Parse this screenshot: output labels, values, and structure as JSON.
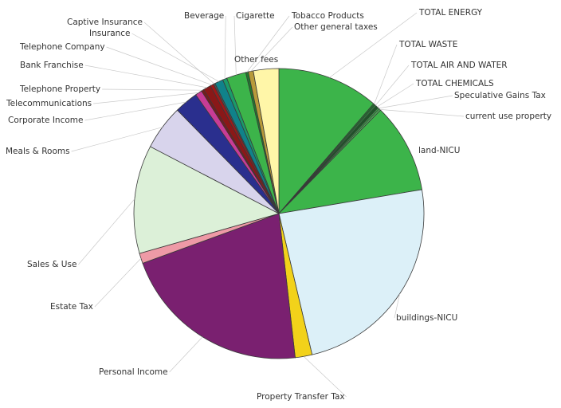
{
  "chart_data": {
    "type": "pie",
    "title": "",
    "slices": [
      {
        "label": "TOTAL ENERGY",
        "value": 12.0,
        "color": "#3cb44a"
      },
      {
        "label": "TOTAL WASTE",
        "value": 0.2,
        "color": "#1e7a2e"
      },
      {
        "label": "TOTAL AIR AND WATER",
        "value": 0.2,
        "color": "#2a8a3a"
      },
      {
        "label": "TOTAL CHEMICALS",
        "value": 0.3,
        "color": "#1a5a26"
      },
      {
        "label": "Speculative Gains Tax",
        "value": 0.2,
        "color": "#3ca84a"
      },
      {
        "label": "current use property",
        "value": 0.2,
        "color": "#54b85e"
      },
      {
        "label": "land-NICU",
        "value": 10.6,
        "color": "#3cb44a"
      },
      {
        "label": "buildings-NICU",
        "value": 25.4,
        "color": "#dcf0f8"
      },
      {
        "label": "Property Transfer Tax",
        "value": 2.0,
        "color": "#f2d21a"
      },
      {
        "label": "Personal Income",
        "value": 22.5,
        "color": "#7a2070"
      },
      {
        "label": "Estate Tax",
        "value": 1.2,
        "color": "#ee9aa6"
      },
      {
        "label": "Sales & Use",
        "value": 12.8,
        "color": "#dcf0d8"
      },
      {
        "label": "Meals & Rooms",
        "value": 5.3,
        "color": "#d8d4ec"
      },
      {
        "label": "Corporate Income",
        "value": 2.8,
        "color": "#2a2f8e"
      },
      {
        "label": "Telecommunications",
        "value": 0.8,
        "color": "#c83c96"
      },
      {
        "label": "Telephone Property",
        "value": 0.3,
        "color": "#7a1a1a"
      },
      {
        "label": "Bank Franchise",
        "value": 0.9,
        "color": "#8a1818"
      },
      {
        "label": "Telephone Company",
        "value": 0.4,
        "color": "#a01818"
      },
      {
        "label": "Captive Insurance",
        "value": 0.2,
        "color": "#505050"
      },
      {
        "label": "Insurance",
        "value": 1.0,
        "color": "#10828a"
      },
      {
        "label": "Beverage",
        "value": 0.5,
        "color": "#1a9a6a"
      },
      {
        "label": "Cigarette",
        "value": 2.3,
        "color": "#3cb44a"
      },
      {
        "label": "Tobacco Products",
        "value": 0.3,
        "color": "#1e7a2e"
      },
      {
        "label": "Other general taxes",
        "value": 0.6,
        "color": "#b89a3a"
      },
      {
        "label": "Other fees",
        "value": 3.0,
        "color": "#fff6a8"
      }
    ]
  }
}
